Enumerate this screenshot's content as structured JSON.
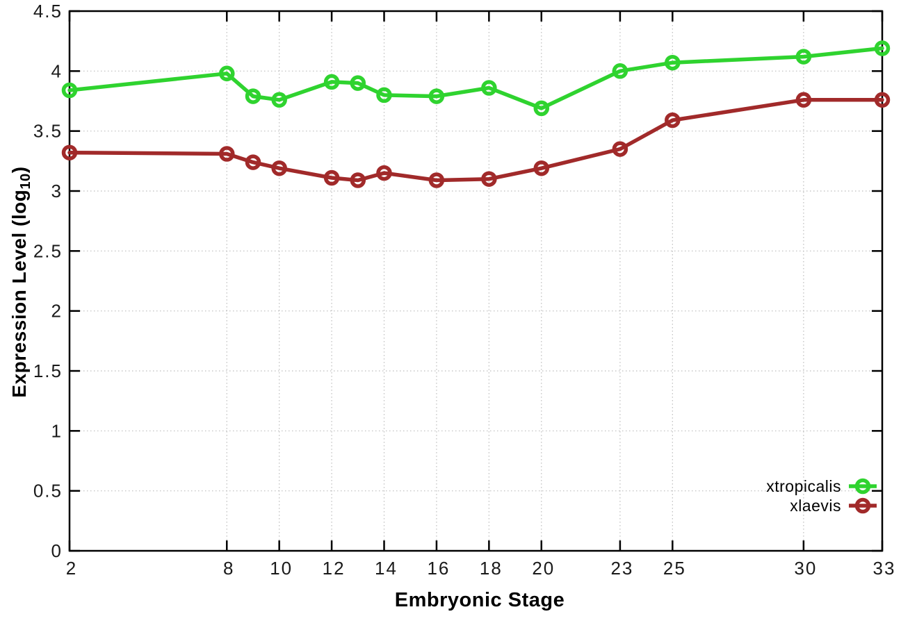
{
  "chart_data": {
    "type": "line",
    "title": "",
    "xlabel": "Embryonic Stage",
    "ylabel": "Expression Level (log10)",
    "ylabel_parts": {
      "prefix": "Expression Level (log",
      "sub": "10",
      "suffix": ")"
    },
    "xlim": [
      2,
      33
    ],
    "ylim": [
      0,
      4.5
    ],
    "x_ticks": [
      "2",
      "8",
      "10",
      "12",
      "14",
      "16",
      "18",
      "20",
      "23",
      "25",
      "30",
      "33"
    ],
    "y_ticks": [
      "0",
      "0.5",
      "1",
      "1.5",
      "2",
      "2.5",
      "3",
      "3.5",
      "4",
      "4.5"
    ],
    "grid": true,
    "legend_position": "bottom-right",
    "axis_color": "#000000",
    "grid_color": "#bcbcbc",
    "tick_label_color": "#1a1a1a",
    "series": [
      {
        "name": "xtropicalis",
        "color": "#2fd32f",
        "x": [
          2,
          8,
          9,
          10,
          12,
          13,
          14,
          16,
          18,
          20,
          23,
          25,
          30,
          33
        ],
        "y": [
          3.84,
          3.98,
          3.79,
          3.76,
          3.91,
          3.9,
          3.8,
          3.79,
          3.86,
          3.69,
          4.0,
          4.07,
          4.12,
          4.19
        ]
      },
      {
        "name": "xlaevis",
        "color": "#a12a2a",
        "x": [
          2,
          8,
          9,
          10,
          12,
          13,
          14,
          16,
          18,
          20,
          23,
          25,
          30,
          33
        ],
        "y": [
          3.32,
          3.31,
          3.24,
          3.19,
          3.11,
          3.09,
          3.15,
          3.09,
          3.1,
          3.19,
          3.35,
          3.59,
          3.76,
          3.76
        ]
      }
    ]
  }
}
